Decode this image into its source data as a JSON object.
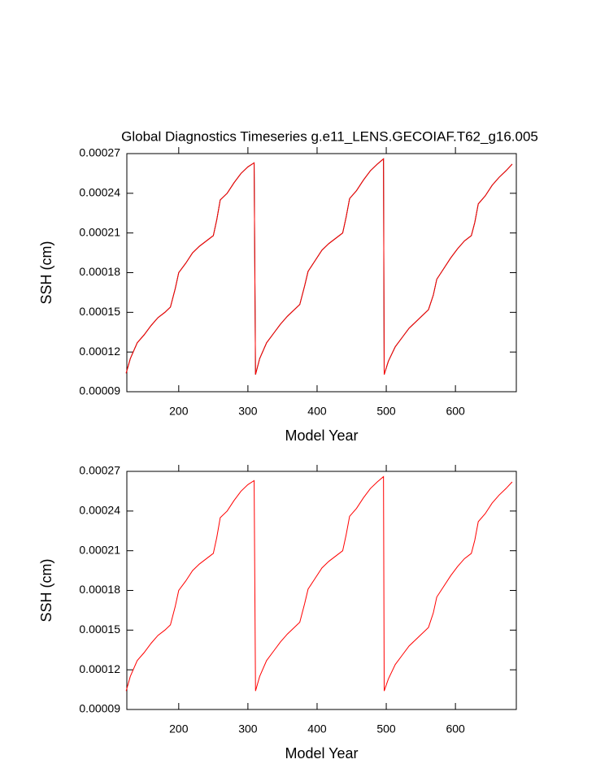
{
  "chart_data": [
    {
      "type": "line",
      "title": "Global Diagnostics Timeseries g.e11_LENS.GECOIAF.T62_g16.005",
      "x_label": "Model Year",
      "y_label": "SSH (cm)",
      "xlim": [
        125,
        688
      ],
      "xticks": [
        200,
        300,
        400,
        500,
        600
      ],
      "ylim": [
        9e-05,
        0.00027
      ],
      "yticks": [
        9e-05,
        0.00012,
        0.00015,
        0.00018,
        0.00021,
        0.00024,
        0.00027
      ],
      "x": [
        124,
        130,
        140,
        150,
        160,
        170,
        180,
        188,
        195,
        200,
        210,
        220,
        230,
        240,
        250,
        255,
        260,
        270,
        280,
        290,
        300,
        309,
        311,
        317,
        327,
        337,
        347,
        357,
        367,
        375,
        382,
        387,
        397,
        407,
        417,
        427,
        437,
        442,
        447,
        457,
        467,
        477,
        487,
        496,
        497,
        503,
        513,
        523,
        533,
        543,
        553,
        561,
        568,
        573,
        583,
        593,
        603,
        613,
        623,
        628,
        633,
        643,
        653,
        663,
        673,
        682
      ],
      "series": [
        {
          "color": "#000000",
          "values": [
            0.000104,
            0.000115,
            0.000127,
            0.000133,
            0.00014,
            0.000146,
            0.00015,
            0.000154,
            0.000168,
            0.00018,
            0.000187,
            0.000195,
            0.0002,
            0.000204,
            0.000208,
            0.00022,
            0.000235,
            0.00024,
            0.000248,
            0.000255,
            0.00026,
            0.000263,
            0.000103,
            0.000115,
            0.000127,
            0.000134,
            0.000141,
            0.000147,
            0.000152,
            0.000156,
            0.00017,
            0.000181,
            0.000189,
            0.000197,
            0.000202,
            0.000206,
            0.00021,
            0.000222,
            0.000236,
            0.000242,
            0.00025,
            0.000257,
            0.000262,
            0.000266,
            0.000103,
            0.000113,
            0.000124,
            0.000131,
            0.000138,
            0.000143,
            0.000148,
            0.000152,
            0.000163,
            0.000175,
            0.000183,
            0.000191,
            0.000198,
            0.000204,
            0.000208,
            0.000218,
            0.000232,
            0.000238,
            0.000246,
            0.000252,
            0.000257,
            0.000262
          ]
        },
        {
          "color": "#ff0000",
          "values": [
            0.000104,
            0.000115,
            0.000127,
            0.000133,
            0.00014,
            0.000146,
            0.00015,
            0.000154,
            0.000168,
            0.00018,
            0.000187,
            0.000195,
            0.0002,
            0.000204,
            0.000208,
            0.00022,
            0.000235,
            0.00024,
            0.000248,
            0.000255,
            0.00026,
            0.000263,
            0.000103,
            0.000115,
            0.000127,
            0.000134,
            0.000141,
            0.000147,
            0.000152,
            0.000156,
            0.00017,
            0.000181,
            0.000189,
            0.000197,
            0.000202,
            0.000206,
            0.00021,
            0.000222,
            0.000236,
            0.000242,
            0.00025,
            0.000257,
            0.000262,
            0.000266,
            0.000103,
            0.000113,
            0.000124,
            0.000131,
            0.000138,
            0.000143,
            0.000148,
            0.000152,
            0.000163,
            0.000175,
            0.000183,
            0.000191,
            0.000198,
            0.000204,
            0.000208,
            0.000218,
            0.000232,
            0.000238,
            0.000246,
            0.000252,
            0.000257,
            0.000262
          ]
        }
      ]
    },
    {
      "type": "line",
      "x_label": "Model Year",
      "y_label": "SSH (cm)",
      "xlim": [
        125,
        688
      ],
      "xticks": [
        200,
        300,
        400,
        500,
        600
      ],
      "ylim": [
        9e-05,
        0.00027
      ],
      "yticks": [
        9e-05,
        0.00012,
        0.00015,
        0.00018,
        0.00021,
        0.00024,
        0.00027
      ],
      "x": [
        124,
        130,
        140,
        150,
        160,
        170,
        180,
        188,
        195,
        200,
        210,
        220,
        230,
        240,
        250,
        255,
        260,
        270,
        280,
        290,
        300,
        309,
        311,
        317,
        327,
        337,
        347,
        357,
        367,
        375,
        382,
        387,
        397,
        407,
        417,
        427,
        437,
        442,
        447,
        457,
        467,
        477,
        487,
        496,
        497,
        503,
        513,
        523,
        533,
        543,
        553,
        561,
        568,
        573,
        583,
        593,
        603,
        613,
        623,
        628,
        633,
        643,
        653,
        663,
        673,
        682
      ],
      "series": [
        {
          "color": "#ff0000",
          "values": [
            0.000104,
            0.000115,
            0.000127,
            0.000133,
            0.00014,
            0.000146,
            0.00015,
            0.000154,
            0.000168,
            0.00018,
            0.000187,
            0.000195,
            0.0002,
            0.000204,
            0.000208,
            0.00022,
            0.000235,
            0.00024,
            0.000248,
            0.000255,
            0.00026,
            0.000263,
            0.000104,
            0.000115,
            0.000127,
            0.000134,
            0.000141,
            0.000147,
            0.000152,
            0.000156,
            0.00017,
            0.000181,
            0.000189,
            0.000197,
            0.000202,
            0.000206,
            0.00021,
            0.000222,
            0.000236,
            0.000242,
            0.00025,
            0.000257,
            0.000262,
            0.000266,
            0.000104,
            0.000113,
            0.000124,
            0.000131,
            0.000138,
            0.000143,
            0.000148,
            0.000152,
            0.000163,
            0.000175,
            0.000183,
            0.000191,
            0.000198,
            0.000204,
            0.000208,
            0.000218,
            0.000232,
            0.000238,
            0.000246,
            0.000252,
            0.000257,
            0.000262
          ]
        }
      ]
    }
  ]
}
